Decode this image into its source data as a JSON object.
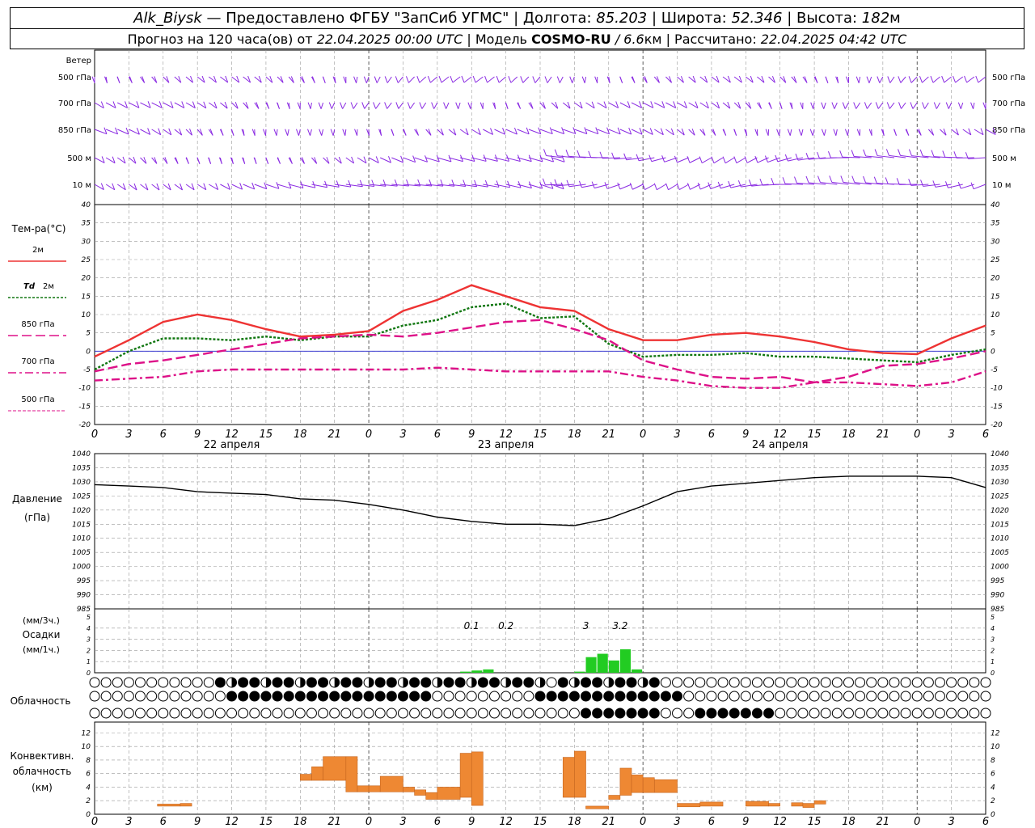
{
  "header": {
    "station": "Alk_Biysk",
    "provided_by": "— Предоставлено ФГБУ \"ЗапСиб УГМС\" |",
    "lon_label": "Долгота:",
    "lon": "85.203",
    "lat_label": "| Широта:",
    "lat": "52.346",
    "alt_label": "| Высота:",
    "alt": "182",
    "alt_unit": "м",
    "forecast_label": "Прогноз на 120 часа(ов) от",
    "forecast_start": "22.04.2025 00:00 UTC",
    "model_label": "| Модель",
    "model": "COSMO-RU",
    "model_res": "/ 6.6",
    "model_res_unit": "км",
    "calc_label": "| Рассчитано:",
    "calc_time": "22.04.2025 04:42 UTC"
  },
  "colors": {
    "wind": "#8a2be2",
    "t2m": "#ee3333",
    "td2m": "#117711",
    "t850": "#dd1188",
    "t700": "#dd1188",
    "t500": "#dd1188",
    "zero_line": "#2222cc",
    "pressure": "#000000",
    "precip": "#22cc22",
    "convective": "#ee8833",
    "grid": "#999999"
  },
  "chart_data": [
    {
      "panel": "wind",
      "type": "wind-barbs",
      "labels": [
        "Ветер",
        "500 гПа",
        "700 гПа",
        "850 гПа",
        "500 м",
        "10  м"
      ],
      "right_labels": [
        "500 гПа",
        "700 гПа",
        "850 гПа",
        "500 м",
        "10  м"
      ]
    },
    {
      "panel": "temperature",
      "type": "line",
      "title": "Тем-ра(°C)",
      "ylim": [
        -20,
        40
      ],
      "yticks": [
        -20,
        -15,
        -10,
        -5,
        0,
        5,
        10,
        15,
        20,
        25,
        30,
        35,
        40
      ],
      "x_ticks": [
        "0",
        "3",
        "6",
        "9",
        "12",
        "15",
        "18",
        "21",
        "0",
        "3",
        "6",
        "9",
        "12",
        "15",
        "18",
        "21",
        "0",
        "3",
        "6",
        "9",
        "12",
        "15",
        "18",
        "21",
        "0",
        "3",
        "6"
      ],
      "day_labels": [
        "22 апреля",
        "23 апреля",
        "24 апреля"
      ],
      "legend": [
        {
          "label": "2м",
          "style": "solid"
        },
        {
          "label": "Td",
          "label2": "2м",
          "style": "dotted"
        },
        {
          "label": "850 гПа",
          "style": "dashed"
        },
        {
          "label": "700 гПа",
          "style": "dashdot"
        },
        {
          "label": "500 гПа",
          "style": "dash-thin"
        }
      ],
      "x_hours": [
        0,
        3,
        6,
        9,
        12,
        15,
        18,
        21,
        24,
        27,
        30,
        33,
        36,
        39,
        42,
        45,
        48,
        51,
        54,
        57,
        60,
        63,
        66,
        69,
        72,
        75,
        78
      ],
      "series": [
        {
          "name": "2м",
          "values": [
            -1.5,
            3,
            8,
            10,
            8.5,
            6,
            4,
            4.5,
            5.5,
            11,
            14,
            18,
            15,
            12,
            11,
            6,
            3,
            3,
            4.5,
            5,
            4,
            2.5,
            0.5,
            -0.5,
            -0.8,
            3.5,
            7
          ]
        },
        {
          "name": "Td 2м",
          "values": [
            -5,
            0,
            3.5,
            3.5,
            3,
            4,
            3,
            4,
            4,
            7,
            8.5,
            12,
            13,
            9,
            9.5,
            2,
            -1.5,
            -1,
            -1,
            -0.5,
            -1.5,
            -1.5,
            -2,
            -2.5,
            -3,
            -1,
            0.5
          ]
        },
        {
          "name": "850 гПа",
          "values": [
            -5.5,
            -3.5,
            -2.5,
            -1,
            0.5,
            2,
            3.5,
            4,
            4.5,
            4,
            5,
            6.5,
            8,
            8.5,
            6,
            3,
            -2.5,
            -5,
            -7,
            -7.5,
            -7,
            -8.5,
            -7,
            -4,
            -3.5,
            -2,
            0
          ]
        },
        {
          "name": "700 гПа",
          "values": [
            -8,
            -7.5,
            -7,
            -5.5,
            -5,
            -5,
            -5,
            -5,
            -5,
            -5,
            -4.5,
            -5,
            -5.5,
            -5.5,
            -5.5,
            -5.5,
            -7,
            -8,
            -9.5,
            -10,
            -10,
            -8.5,
            -8.5,
            -9,
            -9.5,
            -8.5,
            -5.5
          ]
        }
      ]
    },
    {
      "panel": "pressure",
      "type": "line",
      "title": "Давление",
      "unit": "(гПа)",
      "ylim": [
        985,
        1040
      ],
      "yticks": [
        985,
        990,
        995,
        1000,
        1005,
        1010,
        1015,
        1020,
        1025,
        1030,
        1035,
        1040
      ],
      "x_hours": [
        0,
        3,
        6,
        9,
        12,
        15,
        18,
        21,
        24,
        27,
        30,
        33,
        36,
        39,
        42,
        45,
        48,
        51,
        54,
        57,
        60,
        63,
        66,
        69,
        72,
        75,
        78
      ],
      "series": [
        {
          "name": "Давление",
          "values": [
            1029,
            1028.5,
            1028,
            1026.5,
            1026,
            1025.5,
            1024,
            1023.5,
            1022,
            1020,
            1017.5,
            1016,
            1015,
            1015,
            1014.5,
            1017,
            1021.5,
            1026.5,
            1028.5,
            1029.5,
            1030.5,
            1031.5,
            1032,
            1032,
            1032,
            1031.5,
            1028
          ]
        }
      ]
    },
    {
      "panel": "precipitation",
      "type": "bar",
      "title": "Осадки",
      "unit_3h": "(мм/3ч.)",
      "unit_1h": "(мм/1ч.)",
      "ylim": [
        0,
        5
      ],
      "yticks": [
        0,
        1,
        2,
        3,
        4,
        5
      ],
      "annotations": [
        "0.1",
        "0.2",
        "3",
        "3.2"
      ],
      "bars_hourly": [
        {
          "hour": 32,
          "value": 0.1
        },
        {
          "hour": 33,
          "value": 0.2
        },
        {
          "hour": 34,
          "value": 0.3
        },
        {
          "hour": 42,
          "value": 0.1
        },
        {
          "hour": 43,
          "value": 1.4
        },
        {
          "hour": 44,
          "value": 1.7
        },
        {
          "hour": 45,
          "value": 1.1
        },
        {
          "hour": 46,
          "value": 2.1
        },
        {
          "hour": 47,
          "value": 0.3
        }
      ]
    },
    {
      "panel": "cloudiness",
      "type": "table",
      "title": "Облачность"
    },
    {
      "panel": "convective",
      "type": "bar",
      "title": "Конвективн.",
      "title2": "облачность",
      "unit": "(км)",
      "ylim": [
        0,
        13
      ],
      "yticks": [
        0,
        2,
        4,
        6,
        8,
        10,
        12
      ],
      "x_ticks": [
        "0",
        "3",
        "6",
        "9",
        "12",
        "15",
        "18",
        "21",
        "0",
        "3",
        "6",
        "9",
        "12",
        "15",
        "18",
        "21",
        "0",
        "3",
        "6",
        "9",
        "12",
        "15",
        "18",
        "21",
        "0",
        "3",
        "6"
      ],
      "bars": [
        {
          "h0": 5.5,
          "h1": 7.5,
          "base": 1.2,
          "top": 1.5
        },
        {
          "h0": 7.5,
          "h1": 8.5,
          "base": 1.2,
          "top": 1.6
        },
        {
          "h0": 18,
          "h1": 19,
          "base": 5,
          "top": 5.9
        },
        {
          "h0": 19,
          "h1": 20,
          "base": 5,
          "top": 7
        },
        {
          "h0": 20,
          "h1": 22,
          "base": 5,
          "top": 8.5
        },
        {
          "h0": 22,
          "h1": 23,
          "base": 3.3,
          "top": 8.5
        },
        {
          "h0": 23,
          "h1": 24,
          "base": 3.3,
          "top": 4.2
        },
        {
          "h0": 24,
          "h1": 25,
          "base": 3.3,
          "top": 4.2
        },
        {
          "h0": 25,
          "h1": 27,
          "base": 3.3,
          "top": 5.6
        },
        {
          "h0": 27,
          "h1": 28,
          "base": 3.3,
          "top": 4
        },
        {
          "h0": 28,
          "h1": 29,
          "base": 2.8,
          "top": 3.6
        },
        {
          "h0": 29,
          "h1": 30,
          "base": 2.2,
          "top": 3.2
        },
        {
          "h0": 30,
          "h1": 32,
          "base": 2.2,
          "top": 4
        },
        {
          "h0": 32,
          "h1": 33,
          "base": 2.5,
          "top": 9
        },
        {
          "h0": 33,
          "h1": 34,
          "base": 1.3,
          "top": 9.2
        },
        {
          "h0": 41,
          "h1": 42,
          "base": 2.5,
          "top": 8.4
        },
        {
          "h0": 42,
          "h1": 43,
          "base": 2.5,
          "top": 9.3
        },
        {
          "h0": 43,
          "h1": 45,
          "base": 0.8,
          "top": 1.2
        },
        {
          "h0": 45,
          "h1": 46,
          "base": 2.2,
          "top": 2.8
        },
        {
          "h0": 46,
          "h1": 47,
          "base": 2.8,
          "top": 6.8
        },
        {
          "h0": 47,
          "h1": 48,
          "base": 3.2,
          "top": 5.8
        },
        {
          "h0": 48,
          "h1": 49,
          "base": 3.2,
          "top": 5.4
        },
        {
          "h0": 49,
          "h1": 51,
          "base": 3.2,
          "top": 5.1
        },
        {
          "h0": 51,
          "h1": 53,
          "base": 1.1,
          "top": 1.6
        },
        {
          "h0": 53,
          "h1": 55,
          "base": 1.2,
          "top": 1.8
        },
        {
          "h0": 57,
          "h1": 59,
          "base": 1.2,
          "top": 1.9
        },
        {
          "h0": 59,
          "h1": 60,
          "base": 1.2,
          "top": 1.6
        },
        {
          "h0": 61,
          "h1": 62,
          "base": 1.2,
          "top": 1.7
        },
        {
          "h0": 62,
          "h1": 63,
          "base": 1.0,
          "top": 1.6
        },
        {
          "h0": 63,
          "h1": 64,
          "base": 1.5,
          "top": 2.0
        }
      ]
    }
  ]
}
